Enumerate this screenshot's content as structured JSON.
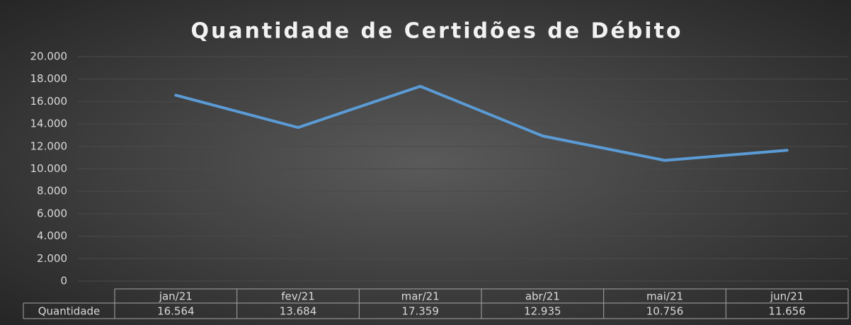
{
  "chart_data": {
    "type": "line",
    "title": "Quantidade de Certidões de Débito",
    "categories": [
      "jan/21",
      "fev/21",
      "mar/21",
      "abr/21",
      "mai/21",
      "jun/21"
    ],
    "series": [
      {
        "name": "Quantidade",
        "color": "#5b9bd5",
        "values": [
          16564,
          13684,
          17359,
          12935,
          10756,
          11656
        ],
        "value_labels": [
          "16.564",
          "13.684",
          "17.359",
          "12.935",
          "10.756",
          "11.656"
        ]
      }
    ],
    "ylim": [
      0,
      20000
    ],
    "yticks": [
      0,
      {
        "value": 2000,
        "label": "2.000"
      },
      {
        "value": 4000,
        "label": "4.000"
      },
      {
        "value": 6000,
        "label": "6.000"
      },
      {
        "value": 8000,
        "label": "8.000"
      },
      {
        "value": 10000,
        "label": "10.000"
      },
      {
        "value": 12000,
        "label": "12.000"
      },
      {
        "value": 14000,
        "label": "14.000"
      },
      {
        "value": 16000,
        "label": "16.000"
      },
      {
        "value": 18000,
        "label": "18.000"
      },
      {
        "value": 20000,
        "label": "20.000"
      }
    ],
    "grid": true,
    "data_table": true
  }
}
